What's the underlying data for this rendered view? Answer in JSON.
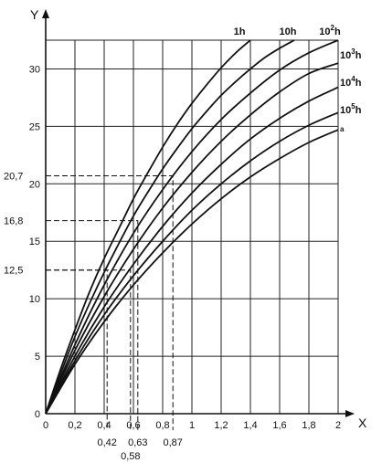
{
  "chart_data": {
    "type": "line",
    "xlabel": "X",
    "ylabel": "Y",
    "xlim": [
      0,
      2
    ],
    "ylim": [
      0,
      32.5
    ],
    "grid": true,
    "x_ticks": [
      "0",
      "0,2",
      "0,4",
      "0,6",
      "0,8",
      "1",
      "1,2",
      "1,4",
      "1,6",
      "1,8",
      "2"
    ],
    "x_tick_values": [
      0,
      0.2,
      0.4,
      0.6,
      0.8,
      1.0,
      1.2,
      1.4,
      1.6,
      1.8,
      2.0
    ],
    "y_ticks": [
      "0",
      "5",
      "10",
      "15",
      "20",
      "25",
      "30"
    ],
    "y_tick_values": [
      0,
      5,
      10,
      15,
      20,
      25,
      30
    ],
    "marked_y": [
      {
        "label": "12,5",
        "value": 12.5
      },
      {
        "label": "16,8",
        "value": 16.8
      },
      {
        "label": "20,7",
        "value": 20.7
      }
    ],
    "marked_x": [
      {
        "label": "0,42",
        "value": 0.42
      },
      {
        "label": "0,58",
        "value": 0.58
      },
      {
        "label": "0,63",
        "value": 0.63
      },
      {
        "label": "0,87",
        "value": 0.87
      }
    ],
    "guides": [
      {
        "y": 12.5,
        "x": 0.58
      },
      {
        "y": 16.8,
        "x": 0.63
      },
      {
        "y": 20.7,
        "x": 0.87
      },
      {
        "y": 12.5,
        "x": 0.42
      }
    ],
    "series": [
      {
        "name": "1h",
        "label_base": "1h",
        "label_exp": "",
        "x": [
          0,
          0.1,
          0.2,
          0.3,
          0.4,
          0.5,
          0.6,
          0.7,
          0.8,
          0.9,
          1.0,
          1.1,
          1.2,
          1.3,
          1.4
        ],
        "y": [
          0,
          3.8,
          7.3,
          10.6,
          13.5,
          16.1,
          18.7,
          21.0,
          23.2,
          25.2,
          27.0,
          28.6,
          30.1,
          31.4,
          32.5
        ]
      },
      {
        "name": "10h",
        "label_base": "10h",
        "label_exp": "",
        "x": [
          0,
          0.1,
          0.2,
          0.3,
          0.4,
          0.5,
          0.6,
          0.7,
          0.8,
          0.9,
          1.0,
          1.1,
          1.2,
          1.3,
          1.4,
          1.5,
          1.6,
          1.7
        ],
        "y": [
          0,
          3.4,
          6.7,
          9.6,
          12.3,
          14.8,
          17.2,
          19.3,
          21.3,
          23.1,
          24.8,
          26.3,
          27.7,
          28.9,
          30.0,
          31.0,
          31.8,
          32.5
        ]
      },
      {
        "name": "10²h",
        "label_base": "10",
        "label_exp": "2",
        "label_suffix": "h",
        "x": [
          0,
          0.2,
          0.4,
          0.6,
          0.8,
          1.0,
          1.2,
          1.4,
          1.6,
          1.8,
          2.0
        ],
        "y": [
          0,
          6.0,
          11.2,
          15.7,
          19.5,
          22.8,
          25.6,
          27.9,
          29.9,
          31.4,
          32.5
        ]
      },
      {
        "name": "10³h",
        "label_base": "10",
        "label_exp": "3",
        "label_suffix": "h",
        "x": [
          0,
          0.2,
          0.4,
          0.6,
          0.8,
          1.0,
          1.2,
          1.4,
          1.6,
          1.8,
          2.0
        ],
        "y": [
          0,
          5.5,
          10.2,
          14.3,
          17.9,
          21.0,
          23.7,
          26.0,
          28.0,
          29.6,
          30.5
        ]
      },
      {
        "name": "10⁴h",
        "label_base": "10",
        "label_exp": "4",
        "label_suffix": "h",
        "x": [
          0,
          0.2,
          0.4,
          0.6,
          0.8,
          1.0,
          1.2,
          1.4,
          1.6,
          1.8,
          2.0
        ],
        "y": [
          0,
          5.0,
          9.3,
          13.0,
          16.3,
          19.2,
          21.7,
          23.9,
          25.7,
          27.2,
          28.4
        ]
      },
      {
        "name": "10⁵h",
        "label_base": "10",
        "label_exp": "5",
        "label_suffix": "h",
        "x": [
          0,
          0.2,
          0.4,
          0.6,
          0.8,
          1.0,
          1.2,
          1.4,
          1.6,
          1.8,
          2.0
        ],
        "y": [
          0,
          4.6,
          8.6,
          12.0,
          15.0,
          17.7,
          20.0,
          22.0,
          23.7,
          25.1,
          26.2
        ]
      },
      {
        "name": "a",
        "label_base": "a",
        "label_exp": "",
        "x": [
          0,
          0.2,
          0.4,
          0.6,
          0.8,
          1.0,
          1.2,
          1.4,
          1.6,
          1.8,
          2.0
        ],
        "y": [
          0,
          4.3,
          8.0,
          11.2,
          14.0,
          16.5,
          18.7,
          20.6,
          22.2,
          23.6,
          24.7
        ]
      }
    ]
  }
}
